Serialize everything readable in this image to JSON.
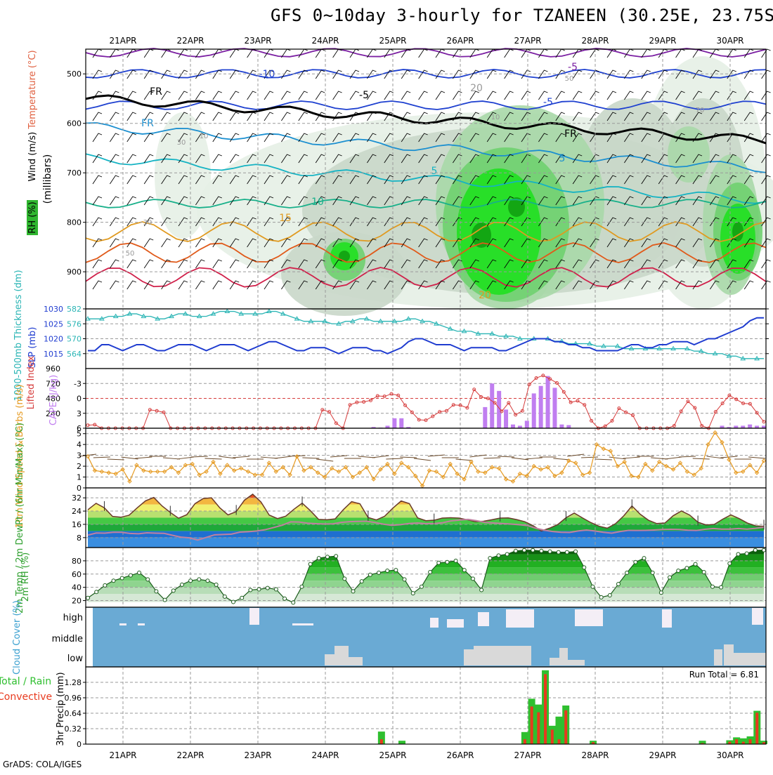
{
  "title": "GFS 0~10day 3-hourly for TZANEEN (30.25E, 23.75S)",
  "footer": "GrADS: COLA/IGES",
  "dates": [
    "21APR",
    "22APR",
    "23APR",
    "24APR",
    "25APR",
    "26APR",
    "27APR",
    "28APR",
    "29APR",
    "30APR"
  ],
  "colors": {
    "cloud_bg": "#6aaad4",
    "rh_green": "#2fb62f",
    "cape": "#c07ef0",
    "lifted": "#d63c3c",
    "slp": "#1f3cd0",
    "thickness": "#2bb5b5",
    "wind10": "#e69a20",
    "rain_total": "#2fbf2f",
    "rain_conv": "#e83a1e"
  },
  "chart_data": [
    {
      "type": "heatmap",
      "panel": "upper-air",
      "ylabel": "(millibars)",
      "legend": [
        "RH (%)",
        "Temperature (°C)",
        "Wind (m/s)"
      ],
      "yticks": [
        500,
        600,
        700,
        800,
        900
      ],
      "ylim": [
        975,
        450
      ],
      "temperature_labels": [
        "-10",
        "-5",
        "-5",
        "-5",
        "FR",
        "FR",
        "FR",
        "5",
        "5",
        "10",
        "15",
        "20",
        "20"
      ],
      "rh_contour_labels": [
        "10",
        "10",
        "30",
        "30",
        "50",
        "50",
        "70",
        "70"
      ]
    },
    {
      "type": "line",
      "panel": "slp-thickness",
      "ylabel_left": "1000-500mb Thickness (dm)",
      "ylabel_right": "SLP (mb)",
      "yticks_left": [
        564,
        570,
        576,
        582
      ],
      "yticks_right": [
        1015,
        1020,
        1025,
        1030
      ],
      "series": [
        {
          "name": "SLP (mb)",
          "values": [
            1016,
            1016,
            1018,
            1018,
            1017,
            1016,
            1017,
            1018,
            1018,
            1017,
            1016,
            1016,
            1017,
            1018,
            1018,
            1018,
            1017,
            1016,
            1017,
            1018,
            1018,
            1018,
            1017,
            1016,
            1017,
            1018,
            1019,
            1019,
            1018,
            1017,
            1016,
            1016,
            1017,
            1017,
            1017,
            1016,
            1015,
            1016,
            1017,
            1017,
            1017,
            1016,
            1016,
            1015,
            1016,
            1017,
            1019,
            1020,
            1020,
            1019,
            1018,
            1018,
            1018,
            1017,
            1016,
            1017,
            1017,
            1017,
            1017,
            1016,
            1016,
            1017,
            1018,
            1019,
            1020,
            1020,
            1020,
            1019,
            1019,
            1018,
            1018,
            1017,
            1017,
            1016,
            1016,
            1016,
            1016,
            1017,
            1018,
            1018,
            1017,
            1017,
            1018,
            1018,
            1019,
            1019,
            1019,
            1018,
            1019,
            1020,
            1020,
            1021,
            1022,
            1023,
            1024,
            1026,
            1027,
            1027
          ]
        },
        {
          "name": "Thickness (dm)",
          "values": [
            578,
            578,
            578,
            579,
            579,
            579,
            580,
            580,
            579,
            579,
            578,
            578,
            579,
            580,
            580,
            579,
            579,
            579,
            580,
            581,
            581,
            581,
            580,
            580,
            580,
            580,
            581,
            581,
            580,
            579,
            578,
            577,
            577,
            577,
            577,
            576,
            576,
            577,
            577,
            578,
            578,
            577,
            577,
            577,
            577,
            577,
            578,
            578,
            577,
            577,
            576,
            575,
            574,
            573,
            573,
            573,
            572,
            572,
            572,
            571,
            571,
            571,
            570,
            570,
            570,
            570,
            570,
            569,
            569,
            568,
            568,
            568,
            568,
            567,
            567,
            567,
            567,
            566,
            566,
            566,
            566,
            566,
            566,
            566,
            566,
            566,
            566,
            565,
            565,
            564,
            564,
            564,
            563,
            563,
            562,
            562,
            562,
            562
          ]
        }
      ]
    },
    {
      "type": "bar",
      "panel": "cape-lifted-index",
      "ylabel_left": "Lifted Index",
      "ylabel_right": "CAPE (J/kg)",
      "yticks_left": [
        -3,
        0,
        3,
        6
      ],
      "yticks_right": [
        240,
        480,
        720,
        960
      ],
      "series": [
        {
          "name": "CAPE (J/kg)",
          "values": [
            0,
            0,
            0,
            0,
            0,
            0,
            0,
            0,
            0,
            0,
            0,
            0,
            0,
            0,
            0,
            0,
            0,
            0,
            0,
            0,
            0,
            0,
            0,
            0,
            0,
            0,
            0,
            0,
            0,
            0,
            0,
            0,
            0,
            0,
            0,
            0,
            0,
            0,
            0,
            0,
            0,
            20,
            10,
            40,
            160,
            160,
            20,
            0,
            0,
            0,
            0,
            0,
            0,
            0,
            0,
            0,
            0,
            340,
            720,
            600,
            300,
            60,
            40,
            120,
            560,
            680,
            840,
            650,
            60,
            50,
            0,
            0,
            0,
            0,
            0,
            0,
            0,
            0,
            0,
            0,
            0,
            0,
            0,
            0,
            0,
            0,
            0,
            0,
            0,
            0,
            0,
            40,
            20,
            40,
            40,
            60,
            40,
            40
          ]
        },
        {
          "name": "Lifted Index",
          "values": [
            5.4,
            5.3,
            6,
            6,
            6,
            6,
            6,
            6,
            6,
            2.3,
            2.5,
            2.8,
            6,
            6,
            6,
            6,
            6,
            6,
            6,
            6,
            6,
            6,
            6,
            6,
            6,
            6,
            6,
            6,
            6,
            6,
            6,
            6,
            6,
            6,
            2.3,
            2.7,
            5,
            6,
            1.3,
            0.8,
            0.7,
            0.4,
            -0.5,
            -0.4,
            -0.9,
            -0.6,
            1.4,
            2.8,
            4.3,
            4.4,
            3.6,
            2.7,
            2.5,
            1.3,
            1.4,
            1.9,
            -1.8,
            -0.3,
            0,
            0.9,
            2.6,
            0.9,
            3.3,
            2.5,
            -2.8,
            -4.1,
            -4.6,
            -3.9,
            -3.1,
            -1.3,
            0.8,
            0.5,
            1.3,
            4.5,
            6,
            5.6,
            4.5,
            2,
            2.8,
            3.4,
            6,
            6,
            6,
            6,
            6,
            5.5,
            2.6,
            0.6,
            1.9,
            5.5,
            6,
            2.7,
            1,
            -0.6,
            0.2,
            1,
            1.1,
            2.9,
            4.7
          ]
        }
      ]
    },
    {
      "type": "line",
      "panel": "10m-wind",
      "ylabel": "10m Wind Speed & Barbs (m/s)",
      "yticks": [
        0,
        1,
        2,
        3,
        4,
        5
      ],
      "series": [
        {
          "name": "10m Wind Speed",
          "values": [
            2.9,
            1.6,
            1.5,
            1.4,
            1.3,
            1.7,
            0.6,
            2.1,
            1.6,
            1.5,
            1.5,
            1.5,
            1.9,
            1.4,
            2.1,
            2.2,
            1.2,
            1.5,
            2.4,
            1.3,
            2.1,
            1.6,
            1.8,
            1.5,
            1.2,
            1.2,
            2.3,
            1.5,
            1.9,
            1.2,
            2.9,
            1.6,
            1.9,
            1.4,
            1.0,
            1.8,
            1.5,
            1.9,
            1.0,
            1.4,
            1.9,
            0.8,
            1.7,
            2.2,
            1.3,
            2.3,
            1.9,
            1.1,
            0.2,
            1.6,
            1.5,
            1.0,
            2.2,
            1.3,
            0.8,
            2.4,
            1.5,
            1.4,
            1.9,
            1.8,
            0.8,
            0.6,
            1.3,
            1.1,
            2.0,
            1.7,
            1.9,
            1.1,
            1.4,
            2.5,
            2.3,
            1.2,
            1.4,
            4.0,
            3.6,
            3.4,
            2.0,
            2.4,
            1.1,
            1.0,
            2.2,
            1.6,
            2.4,
            2.0,
            1.7,
            2.3,
            1.5,
            1.2,
            1.8,
            4.0,
            5.1,
            4.2,
            2.6,
            1.4,
            1.5,
            2.1,
            1.4,
            2.5
          ]
        }
      ]
    },
    {
      "type": "area",
      "panel": "2m-temp-dewpt",
      "ylabel": "2m Temp / 2m DewPt / (6hr Min/Max) (°C)",
      "yticks": [
        8,
        16,
        24,
        32
      ],
      "series": [
        {
          "name": "2m Temp",
          "values": [
            24.8,
            28.7,
            26.0,
            20.8,
            20.3,
            21.5,
            26.0,
            30.2,
            32.2,
            27.1,
            23.2,
            19.7,
            21.8,
            28.5,
            31.6,
            32.0,
            26.0,
            21.7,
            23.7,
            30.6,
            34.2,
            29.5,
            21.6,
            19.5,
            20.9,
            25.1,
            28.8,
            24.2,
            19.0,
            18.8,
            19.3,
            24.9,
            29.7,
            28.4,
            20.1,
            18.7,
            20.9,
            25.8,
            30.1,
            28.5,
            19.9,
            18.2,
            18.5,
            19.8,
            20.0,
            19.8,
            18.8,
            17.6,
            17.9,
            18.8,
            19.8,
            19.9,
            18.9,
            17.6,
            15.2,
            12.0,
            13.7,
            15.9,
            20.0,
            22.8,
            19.9,
            17.1,
            14.9,
            13.7,
            16.4,
            21.1,
            27.1,
            22.1,
            18.5,
            16.5,
            16.8,
            21.2,
            24.1,
            21.6,
            17.3,
            15.6,
            16.0,
            19.1,
            21.7,
            19.5,
            16.8,
            15.1,
            14.8
          ]
        },
        {
          "name": "2m DewPt",
          "values": [
            9.5,
            10.8,
            10.7,
            11.2,
            11.2,
            10.5,
            10.3,
            10.9,
            10.7,
            10.6,
            9.4,
            8.3,
            7.9,
            6.5,
            8.1,
            9.7,
            9.9,
            10.1,
            11.3,
            11.6,
            12.0,
            12.8,
            14.1,
            15.5,
            17.5,
            17.4,
            16.7,
            16.4,
            16.2,
            16.3,
            17.2,
            17.6,
            17.8,
            17.9,
            17.1,
            16.1,
            15.4,
            15.8,
            16.5,
            16.8,
            16.4,
            16.5,
            17.0,
            18.1,
            18.6,
            19.0,
            18.2,
            17.2,
            16.8,
            16.5,
            16.2,
            15.8,
            15.3,
            13.7,
            12.5,
            11.7,
            11.2,
            11.1,
            12.0,
            12.6,
            12.0,
            11.2,
            10.7,
            11.7,
            12.4,
            12.3,
            12.4,
            12.6,
            12.9,
            13.0,
            12.9,
            12.5,
            12.3,
            13.0,
            13.5,
            13.1,
            13.1,
            13.5,
            13.1,
            13.6,
            14.3
          ]
        }
      ]
    },
    {
      "type": "area",
      "panel": "2m-rh",
      "ylabel": "2m RH (%)",
      "yticks": [
        20,
        40,
        60,
        80
      ],
      "series": [
        {
          "name": "2m RH",
          "values": [
            24,
            33,
            43,
            50,
            54,
            58,
            62,
            52,
            34,
            21,
            35,
            44,
            50,
            52,
            50,
            44,
            26,
            18,
            24,
            36,
            37,
            39,
            37,
            23,
            17,
            41,
            75,
            84,
            86,
            87,
            53,
            34,
            49,
            59,
            62,
            65,
            66,
            52,
            31,
            41,
            63,
            77,
            78,
            80,
            66,
            53,
            36,
            84,
            88,
            90,
            95,
            96,
            96,
            95,
            94,
            93,
            93,
            94,
            70,
            41,
            25,
            28,
            45,
            62,
            78,
            84,
            62,
            32,
            55,
            65,
            69,
            75,
            63,
            41,
            40,
            76,
            90,
            91,
            96,
            96
          ]
        }
      ]
    },
    {
      "type": "heatmap",
      "panel": "cloud-cover",
      "ylabel": "Cloud Cover (%)",
      "yticks": [
        "high",
        "middle",
        "low"
      ]
    },
    {
      "type": "bar",
      "panel": "3hr-precip",
      "ylabel": "3hr Precip (mm)",
      "legend": [
        "Total / Rain",
        "Convective"
      ],
      "annotation": "Run Total = 6.81",
      "yticks": [
        0,
        0.32,
        0.64,
        0.96,
        1.28
      ],
      "series": [
        {
          "name": "Total / Rain",
          "values": [
            0,
            0,
            0,
            0,
            0,
            0,
            0,
            0,
            0,
            0,
            0,
            0,
            0,
            0,
            0,
            0,
            0,
            0,
            0,
            0,
            0,
            0,
            0,
            0,
            0,
            0,
            0,
            0,
            0,
            0,
            0,
            0,
            0,
            0,
            0,
            0,
            0,
            0,
            0,
            0,
            0,
            0,
            0,
            0.26,
            0,
            0,
            0.07,
            0,
            0,
            0,
            0,
            0,
            0,
            0,
            0,
            0,
            0,
            0,
            0,
            0,
            0,
            0,
            0,
            0,
            0.25,
            0.94,
            0.82,
            1.53,
            0.38,
            0.57,
            0.8,
            0,
            0,
            0,
            0.07,
            0,
            0,
            0,
            0,
            0,
            0,
            0,
            0,
            0,
            0,
            0,
            0,
            0,
            0,
            0,
            0.07,
            0,
            0,
            0,
            0.08,
            0.14,
            0.12,
            0.16,
            0.69,
            0.07
          ]
        },
        {
          "name": "Convective",
          "values": [
            0,
            0,
            0,
            0,
            0,
            0,
            0,
            0,
            0,
            0,
            0,
            0,
            0,
            0,
            0,
            0,
            0,
            0,
            0,
            0,
            0,
            0,
            0,
            0,
            0,
            0,
            0,
            0,
            0,
            0,
            0,
            0,
            0,
            0,
            0,
            0,
            0,
            0,
            0,
            0,
            0,
            0,
            0,
            0.1,
            0,
            0,
            0,
            0,
            0,
            0,
            0,
            0,
            0,
            0,
            0,
            0,
            0,
            0,
            0,
            0,
            0,
            0,
            0,
            0,
            0.1,
            0.78,
            0.66,
            1.45,
            0.3,
            0.1,
            0.7,
            0,
            0,
            0,
            0.04,
            0,
            0,
            0,
            0,
            0,
            0,
            0,
            0,
            0,
            0,
            0,
            0,
            0,
            0,
            0,
            0.02,
            0,
            0,
            0,
            0.05,
            0.1,
            0.05,
            0.1,
            0.65,
            0.04
          ]
        }
      ]
    }
  ]
}
